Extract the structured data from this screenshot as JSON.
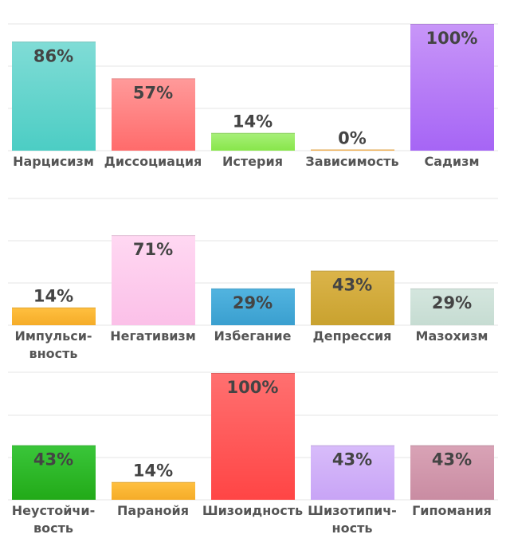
{
  "chart_data": [
    {
      "type": "bar",
      "ylim": [
        0,
        100
      ],
      "grid": true,
      "categories": [
        {
          "label": [
            "Нарцисизм"
          ],
          "value": 86,
          "display": "86%",
          "color_top": "#80dcd6",
          "color_bottom": "#4ccdc4"
        },
        {
          "label": [
            "Диссоциация"
          ],
          "value": 57,
          "display": "57%",
          "color_top": "#ff9a9a",
          "color_bottom": "#ff6b6b"
        },
        {
          "label": [
            "Истерия"
          ],
          "value": 14,
          "display": "14%",
          "color_top": "#a8f07a",
          "color_bottom": "#88e64a"
        },
        {
          "label": [
            "Зависимость"
          ],
          "value": 0,
          "display": "0%",
          "color_top": "#ffc870",
          "color_bottom": "#ffb347"
        },
        {
          "label": [
            "Садизм"
          ],
          "value": 100,
          "display": "100%",
          "color_top": "#c896f8",
          "color_bottom": "#a665f5"
        }
      ]
    },
    {
      "type": "bar",
      "ylim": [
        0,
        100
      ],
      "grid": true,
      "categories": [
        {
          "label": [
            "Импульси-",
            "вность"
          ],
          "value": 14,
          "display": "14%",
          "color_top": "#ffc040",
          "color_bottom": "#f5ac28"
        },
        {
          "label": [
            "Негативизм"
          ],
          "value": 71,
          "display": "71%",
          "color_top": "#ffd8f2",
          "color_bottom": "#fbc0e8"
        },
        {
          "label": [
            "Избегание"
          ],
          "value": 29,
          "display": "29%",
          "color_top": "#52b4e0",
          "color_bottom": "#3a9fcf"
        },
        {
          "label": [
            "Депрессия"
          ],
          "value": 43,
          "display": "43%",
          "color_top": "#dbb44a",
          "color_bottom": "#c9a22f"
        },
        {
          "label": [
            "Мазохизм"
          ],
          "value": 29,
          "display": "29%",
          "color_top": "#d4e6de",
          "color_bottom": "#c6dcd2"
        }
      ]
    },
    {
      "type": "bar",
      "ylim": [
        0,
        100
      ],
      "grid": true,
      "categories": [
        {
          "label": [
            "Неустойчи-",
            "вость"
          ],
          "value": 43,
          "display": "43%",
          "color_top": "#3ac63a",
          "color_bottom": "#22aa18"
        },
        {
          "label": [
            "Паранойя"
          ],
          "value": 14,
          "display": "14%",
          "color_top": "#ffc040",
          "color_bottom": "#f5ac28"
        },
        {
          "label": [
            "Шизоидность"
          ],
          "value": 100,
          "display": "100%",
          "color_top": "#ff7070",
          "color_bottom": "#ff4545"
        },
        {
          "label": [
            "Шизотипич-",
            "ность"
          ],
          "value": 43,
          "display": "43%",
          "color_top": "#d8bcfa",
          "color_bottom": "#c8a4f6"
        },
        {
          "label": [
            "Гипомания"
          ],
          "value": 43,
          "display": "43%",
          "color_top": "#d9a3b6",
          "color_bottom": "#c98ca2"
        }
      ]
    }
  ]
}
